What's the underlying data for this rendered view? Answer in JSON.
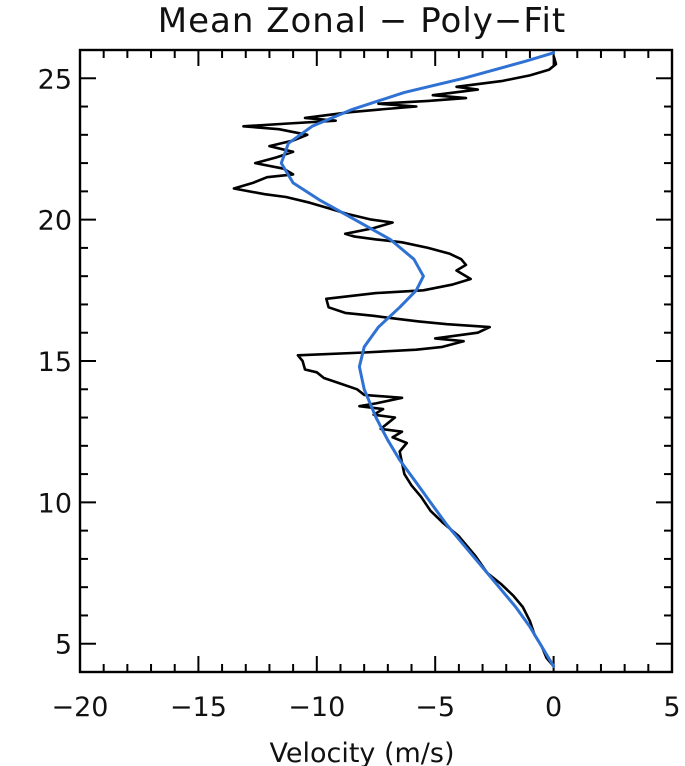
{
  "chart_data": {
    "type": "line",
    "title": "Mean Zonal − Poly−Fit",
    "xlabel": "Velocity (m/s)",
    "ylabel": "",
    "xlim": [
      -20,
      5
    ],
    "ylim": [
      4,
      26
    ],
    "x_ticks": [
      -20,
      -15,
      -10,
      -5,
      0,
      5
    ],
    "x_tick_labels": [
      "−20",
      "−15",
      "−10",
      "−5",
      "0",
      "5"
    ],
    "y_ticks": [
      5,
      10,
      15,
      20,
      25
    ],
    "y_tick_labels": [
      "5",
      "10",
      "15",
      "20",
      "25"
    ],
    "grid": false,
    "legend": "none",
    "series": [
      {
        "color": "#000000",
        "points": [
          [
            0.0,
            4.2
          ],
          [
            -0.3,
            4.5
          ],
          [
            -0.5,
            4.9
          ],
          [
            -0.8,
            5.3
          ],
          [
            -1.0,
            5.8
          ],
          [
            -1.3,
            6.3
          ],
          [
            -1.7,
            6.7
          ],
          [
            -2.2,
            7.1
          ],
          [
            -2.8,
            7.5
          ],
          [
            -3.3,
            8.1
          ],
          [
            -4.0,
            8.8
          ],
          [
            -4.7,
            9.3
          ],
          [
            -5.2,
            9.7
          ],
          [
            -5.6,
            10.2
          ],
          [
            -6.0,
            10.6
          ],
          [
            -6.3,
            11.0
          ],
          [
            -6.4,
            11.4
          ],
          [
            -6.5,
            11.8
          ],
          [
            -6.2,
            12.1
          ],
          [
            -6.8,
            12.3
          ],
          [
            -6.4,
            12.5
          ],
          [
            -7.3,
            12.6
          ],
          [
            -7.0,
            12.8
          ],
          [
            -6.7,
            13.0
          ],
          [
            -7.6,
            13.1
          ],
          [
            -7.2,
            13.3
          ],
          [
            -8.2,
            13.4
          ],
          [
            -7.5,
            13.5
          ],
          [
            -6.4,
            13.7
          ],
          [
            -8.0,
            13.8
          ],
          [
            -8.3,
            14.0
          ],
          [
            -9.0,
            14.2
          ],
          [
            -9.7,
            14.4
          ],
          [
            -10.0,
            14.6
          ],
          [
            -10.5,
            14.7
          ],
          [
            -10.6,
            15.0
          ],
          [
            -10.8,
            15.2
          ],
          [
            -8.0,
            15.3
          ],
          [
            -5.8,
            15.4
          ],
          [
            -4.7,
            15.5
          ],
          [
            -3.8,
            15.7
          ],
          [
            -5.0,
            15.8
          ],
          [
            -3.2,
            16.0
          ],
          [
            -2.7,
            16.2
          ],
          [
            -4.5,
            16.3
          ],
          [
            -5.7,
            16.4
          ],
          [
            -6.7,
            16.5
          ],
          [
            -7.6,
            16.6
          ],
          [
            -8.8,
            16.7
          ],
          [
            -9.5,
            16.9
          ],
          [
            -9.6,
            17.2
          ],
          [
            -7.5,
            17.4
          ],
          [
            -5.5,
            17.5
          ],
          [
            -4.3,
            17.7
          ],
          [
            -3.5,
            17.9
          ],
          [
            -4.1,
            18.2
          ],
          [
            -3.7,
            18.4
          ],
          [
            -3.9,
            18.6
          ],
          [
            -4.4,
            18.8
          ],
          [
            -5.3,
            19.0
          ],
          [
            -6.4,
            19.2
          ],
          [
            -7.5,
            19.3
          ],
          [
            -8.4,
            19.4
          ],
          [
            -8.8,
            19.5
          ],
          [
            -7.6,
            19.7
          ],
          [
            -6.8,
            19.9
          ],
          [
            -7.7,
            20.0
          ],
          [
            -8.7,
            20.2
          ],
          [
            -9.5,
            20.4
          ],
          [
            -10.3,
            20.6
          ],
          [
            -11.3,
            20.8
          ],
          [
            -12.2,
            20.9
          ],
          [
            -13.5,
            21.1
          ],
          [
            -12.7,
            21.3
          ],
          [
            -12.1,
            21.5
          ],
          [
            -11.0,
            21.6
          ],
          [
            -11.4,
            21.8
          ],
          [
            -12.6,
            22.0
          ],
          [
            -11.7,
            22.2
          ],
          [
            -11.0,
            22.4
          ],
          [
            -12.0,
            22.6
          ],
          [
            -11.0,
            22.8
          ],
          [
            -10.4,
            23.0
          ],
          [
            -11.6,
            23.2
          ],
          [
            -13.1,
            23.3
          ],
          [
            -11.2,
            23.4
          ],
          [
            -9.2,
            23.5
          ],
          [
            -10.5,
            23.6
          ],
          [
            -8.6,
            23.8
          ],
          [
            -7.3,
            23.9
          ],
          [
            -5.8,
            24.0
          ],
          [
            -7.4,
            24.1
          ],
          [
            -5.3,
            24.2
          ],
          [
            -3.7,
            24.3
          ],
          [
            -5.1,
            24.4
          ],
          [
            -3.2,
            24.6
          ],
          [
            -4.1,
            24.7
          ],
          [
            -2.2,
            24.9
          ],
          [
            -1.0,
            25.1
          ],
          [
            -0.2,
            25.3
          ],
          [
            0.1,
            25.5
          ],
          [
            0.0,
            25.8
          ]
        ]
      },
      {
        "color": "#2f72d4",
        "points": [
          [
            0.0,
            4.2
          ],
          [
            -0.5,
            4.9
          ],
          [
            -1.0,
            5.6
          ],
          [
            -1.6,
            6.3
          ],
          [
            -2.3,
            7.0
          ],
          [
            -3.0,
            7.7
          ],
          [
            -3.8,
            8.5
          ],
          [
            -4.5,
            9.2
          ],
          [
            -5.2,
            10.0
          ],
          [
            -5.8,
            10.7
          ],
          [
            -6.5,
            11.5
          ],
          [
            -7.0,
            12.2
          ],
          [
            -7.5,
            13.0
          ],
          [
            -8.0,
            14.0
          ],
          [
            -8.2,
            14.8
          ],
          [
            -8.0,
            15.5
          ],
          [
            -7.4,
            16.2
          ],
          [
            -6.5,
            16.9
          ],
          [
            -5.8,
            17.5
          ],
          [
            -5.5,
            18.0
          ],
          [
            -5.9,
            18.6
          ],
          [
            -6.9,
            19.3
          ],
          [
            -8.4,
            20.0
          ],
          [
            -9.9,
            20.7
          ],
          [
            -11.0,
            21.3
          ],
          [
            -11.5,
            22.0
          ],
          [
            -11.2,
            22.7
          ],
          [
            -10.2,
            23.3
          ],
          [
            -8.5,
            23.9
          ],
          [
            -6.3,
            24.5
          ],
          [
            -3.8,
            25.0
          ],
          [
            -1.2,
            25.6
          ],
          [
            0.0,
            25.9
          ]
        ]
      }
    ]
  }
}
